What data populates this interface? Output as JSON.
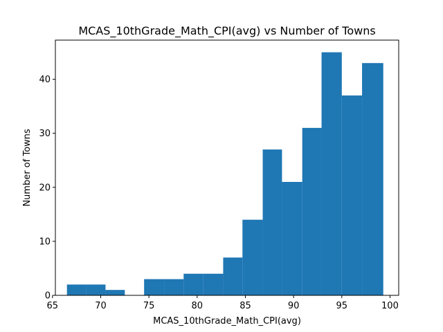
{
  "chart_data": {
    "type": "bar",
    "title": "MCAS_10thGrade_Math_CPI(avg) vs Number of Towns",
    "xlabel": "MCAS_10thGrade_Math_CPI(avg)",
    "ylabel": "Number of Towns",
    "xlim": [
      65.3,
      100.9
    ],
    "ylim": [
      0,
      47.25
    ],
    "xticks": [
      65,
      70,
      75,
      80,
      85,
      90,
      95,
      100
    ],
    "yticks": [
      0,
      10,
      20,
      30,
      40
    ],
    "bar_color": "#1f77b4",
    "bins": [
      {
        "x0": 66.5,
        "x1": 68.5,
        "count": 2
      },
      {
        "x0": 68.5,
        "x1": 70.5,
        "count": 2
      },
      {
        "x0": 70.5,
        "x1": 72.5,
        "count": 1
      },
      {
        "x0": 72.5,
        "x1": 74.5,
        "count": 0
      },
      {
        "x0": 74.5,
        "x1": 76.6,
        "count": 3
      },
      {
        "x0": 76.6,
        "x1": 78.6,
        "count": 3
      },
      {
        "x0": 78.6,
        "x1": 80.6,
        "count": 4
      },
      {
        "x0": 80.6,
        "x1": 82.7,
        "count": 4
      },
      {
        "x0": 82.7,
        "x1": 84.7,
        "count": 7
      },
      {
        "x0": 84.7,
        "x1": 86.8,
        "count": 14
      },
      {
        "x0": 86.8,
        "x1": 88.8,
        "count": 27
      },
      {
        "x0": 88.8,
        "x1": 90.9,
        "count": 21
      },
      {
        "x0": 90.9,
        "x1": 92.9,
        "count": 31
      },
      {
        "x0": 92.9,
        "x1": 95.0,
        "count": 45
      },
      {
        "x0": 95.0,
        "x1": 97.1,
        "count": 37
      },
      {
        "x0": 97.1,
        "x1": 99.3,
        "count": 43
      }
    ]
  }
}
